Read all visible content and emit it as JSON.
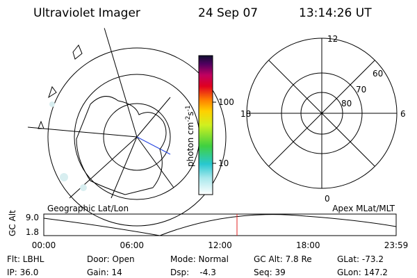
{
  "header": {
    "title": "Ultraviolet Imager",
    "date": "24 Sep 07",
    "time": "13:14:26 UT"
  },
  "colorbar": {
    "unit_parts": [
      "photon cm",
      "-2",
      "s",
      "-1"
    ],
    "tick_labels": [
      "100",
      "10"
    ]
  },
  "polar_plot": {
    "mlt_labels": [
      "12",
      "18",
      "6",
      "0"
    ],
    "lat_labels": [
      "60",
      "70",
      "80"
    ]
  },
  "altitude_plot": {
    "left_title": "Geographic Lat/Lon",
    "right_title": "Apex MLat/MLT",
    "y_label": "GC Alt",
    "y_tick_labels": [
      "9.0",
      "1.8"
    ],
    "x_tick_labels": [
      "00:00",
      "06:00",
      "12:00",
      "18:00",
      "23:59"
    ]
  },
  "info": {
    "rows": [
      [
        "Flt: LBHL",
        "Door: Open",
        "Mode: Normal",
        "GC Alt: 7.8 Re",
        "GLat: -73.2"
      ],
      [
        "IP: 36.0",
        "Gain: 14",
        "Dsp:    -4.3",
        "Seq: 39",
        "GLon: 147.2"
      ]
    ]
  }
}
